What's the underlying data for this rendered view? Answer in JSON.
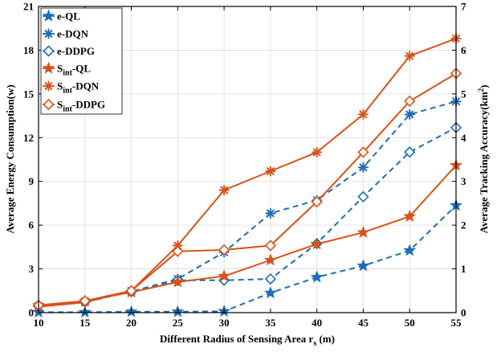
{
  "chart_data": {
    "type": "line",
    "x": [
      10,
      15,
      20,
      25,
      30,
      35,
      40,
      45,
      50,
      55
    ],
    "xlabel_main": "Different Radius of Sensing Area r",
    "xlabel_sub": "s",
    "xlabel_unit": " (m)",
    "ylabel_left": "Average Energy Consumption(w)",
    "ylabel_right_main": "Average Tracking Accuracy(km",
    "ylabel_right_sup": "2",
    "ylabel_right_end": ")",
    "xlim": [
      10,
      55
    ],
    "ylim_left": [
      0,
      21
    ],
    "ylim_right": [
      0,
      7
    ],
    "xticks": [
      "10",
      "15",
      "20",
      "25",
      "30",
      "35",
      "40",
      "45",
      "50",
      "55"
    ],
    "yticks_left": [
      "0",
      "3",
      "6",
      "9",
      "12",
      "15",
      "18",
      "21"
    ],
    "yticks_right": [
      "0",
      "1",
      "2",
      "3",
      "4",
      "5",
      "6",
      "7"
    ],
    "legend_position": "top-left",
    "colors": {
      "e_series": "#1f6db5",
      "s_series": "#d95319"
    },
    "series": [
      {
        "name": "e-QL",
        "label_main": "e-QL",
        "label_sub": "",
        "label_rest": "",
        "axis": "right",
        "color": "#1f6db5",
        "dash": true,
        "marker": "star5",
        "values": [
          0.01,
          0.01,
          0.02,
          0.02,
          0.03,
          0.45,
          0.81,
          1.07,
          1.42,
          2.45
        ]
      },
      {
        "name": "e-DQN",
        "label_main": "e-DQN",
        "label_sub": "",
        "label_rest": "",
        "axis": "right",
        "color": "#1f6db5",
        "dash": true,
        "marker": "asterisk",
        "values": [
          0.15,
          0.26,
          0.48,
          0.77,
          1.38,
          2.27,
          2.57,
          3.32,
          4.53,
          4.83
        ]
      },
      {
        "name": "e-DDPG",
        "label_main": "e-DDPG",
        "label_sub": "",
        "label_rest": "",
        "axis": "right",
        "color": "#1f6db5",
        "dash": true,
        "marker": "diamond",
        "values": [
          0.16,
          0.24,
          0.48,
          0.74,
          0.74,
          0.77,
          1.58,
          2.65,
          3.67,
          4.23
        ]
      },
      {
        "name": "Sint-QL",
        "label_main": "S",
        "label_sub": "int",
        "label_rest": "-QL",
        "axis": "left",
        "color": "#d95319",
        "dash": false,
        "marker": "star5",
        "values": [
          0.5,
          0.8,
          1.4,
          2.1,
          2.5,
          3.6,
          4.7,
          5.5,
          6.6,
          10.1
        ]
      },
      {
        "name": "Sint-DQN",
        "label_main": "S",
        "label_sub": "int",
        "label_rest": "-DQN",
        "axis": "left",
        "color": "#d95319",
        "dash": false,
        "marker": "asterisk",
        "values": [
          0.4,
          0.7,
          1.5,
          4.6,
          8.4,
          9.7,
          11.0,
          13.6,
          17.6,
          18.8
        ]
      },
      {
        "name": "Sint-DDPG",
        "label_main": "S",
        "label_sub": "int",
        "label_rest": "-DDPG",
        "axis": "left",
        "color": "#d95319",
        "dash": false,
        "marker": "diamond",
        "values": [
          0.5,
          0.8,
          1.5,
          4.2,
          4.3,
          4.6,
          7.6,
          11.0,
          14.5,
          16.4
        ]
      }
    ]
  }
}
